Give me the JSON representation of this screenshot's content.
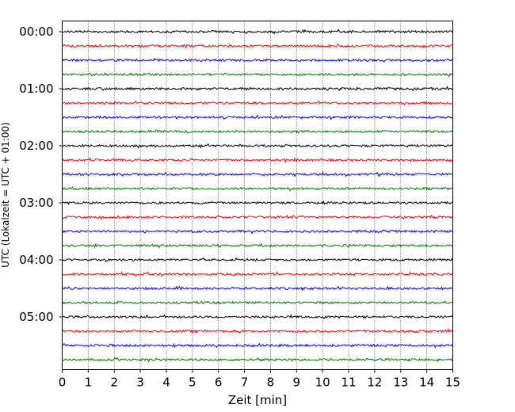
{
  "chart_data": {
    "type": "line",
    "title": "",
    "xlabel": "Zeit  [min]",
    "ylabel": "UTC (Lokalzeit = UTC + 01:00)",
    "xlim": [
      0,
      15
    ],
    "x_ticks": [
      0,
      1,
      2,
      3,
      4,
      5,
      6,
      7,
      8,
      9,
      10,
      11,
      12,
      13,
      14,
      15
    ],
    "x_tick_labels": [
      "0",
      "1",
      "2",
      "3",
      "4",
      "5",
      "6",
      "7",
      "8",
      "9",
      "10",
      "11",
      "12",
      "13",
      "14",
      "15"
    ],
    "y_tick_labels": [
      "00:00",
      "01:00",
      "02:00",
      "03:00",
      "04:00",
      "05:00"
    ],
    "trace_interval_min": 15,
    "trace_start": "00:00",
    "trace_count": 24,
    "trace_colors": [
      "#000000",
      "#ff0000",
      "#0000ff",
      "#008000"
    ],
    "grid": {
      "vertical_dotted": true,
      "horizontal": false
    },
    "legend": "none"
  }
}
